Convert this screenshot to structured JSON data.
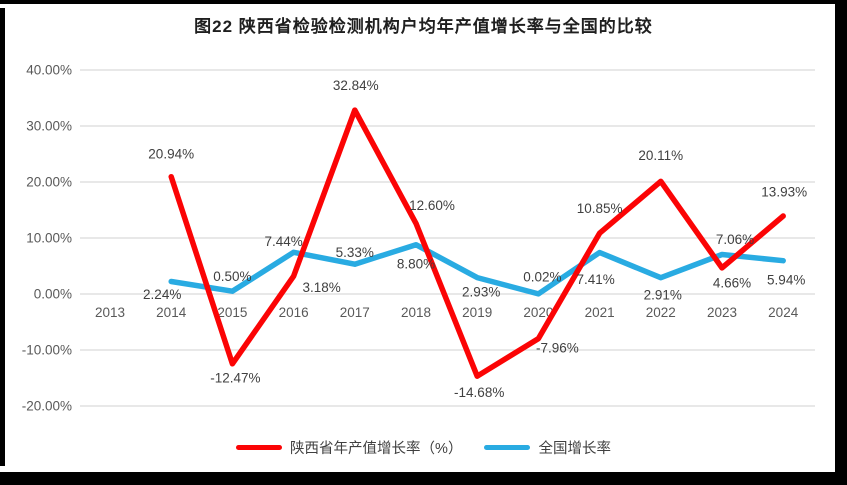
{
  "title": "图22 陕西省检验检测机构户均年产值增长率与全国的比较",
  "colors": {
    "shaanxi_line": "#fb0405",
    "national_line": "#29abe2",
    "gridline": "#d9d9d9",
    "axis_text": "#595959",
    "data_label_text": "#404040",
    "frame_border": "#000000",
    "background": "#ffffff"
  },
  "chart_data": {
    "type": "line",
    "categories": [
      "2013",
      "2014",
      "2015",
      "2016",
      "2017",
      "2018",
      "2019",
      "2020",
      "2021",
      "2022",
      "2023",
      "2024"
    ],
    "series": [
      {
        "name": "陕西省年产值增长率（%）",
        "color": "#fb0405",
        "values": [
          null,
          20.94,
          -12.47,
          3.18,
          32.84,
          12.6,
          -14.68,
          -7.96,
          10.85,
          20.11,
          4.66,
          13.93
        ],
        "labels": [
          "",
          "20.94%",
          "-12.47%",
          "3.18%",
          "32.84%",
          "12.60%",
          "-14.68%",
          "-7.96%",
          "10.85%",
          "20.11%",
          "4.66%",
          "13.93%"
        ],
        "label_offsets": [
          null,
          [
            0,
            -23
          ],
          [
            3,
            14
          ],
          [
            28,
            11
          ],
          [
            1,
            -25
          ],
          [
            16,
            -18
          ],
          [
            2,
            16
          ],
          [
            19,
            9
          ],
          [
            0,
            -25
          ],
          [
            0,
            -26
          ],
          [
            10,
            15
          ],
          [
            1,
            -24
          ]
        ]
      },
      {
        "name": "全国增长率",
        "color": "#29abe2",
        "values": [
          null,
          2.24,
          0.5,
          7.44,
          5.33,
          8.8,
          2.93,
          0.02,
          7.41,
          2.91,
          7.06,
          5.94
        ],
        "labels": [
          "",
          "2.24%",
          "0.50%",
          "7.44%",
          "5.33%",
          "8.80%",
          "2.93%",
          "0.02%",
          "7.41%",
          "2.91%",
          "7.06%",
          "5.94%"
        ],
        "label_offsets": [
          null,
          [
            -9,
            13
          ],
          [
            0,
            -15
          ],
          [
            -10,
            -11
          ],
          [
            0,
            -12
          ],
          [
            0,
            19
          ],
          [
            4,
            14
          ],
          [
            4,
            -17
          ],
          [
            -4,
            27
          ],
          [
            2,
            17
          ],
          [
            13,
            -15
          ],
          [
            3,
            19
          ]
        ]
      }
    ],
    "y_ticks": [
      "40.00%",
      "30.00%",
      "20.00%",
      "10.00%",
      "0.00%",
      "-10.00%",
      "-20.00%"
    ],
    "y_tick_values": [
      40,
      30,
      20,
      10,
      0,
      -10,
      -20
    ],
    "ylim": [
      -20,
      40
    ],
    "grid": true,
    "legend_position": "bottom",
    "xlabel": "",
    "ylabel": ""
  }
}
